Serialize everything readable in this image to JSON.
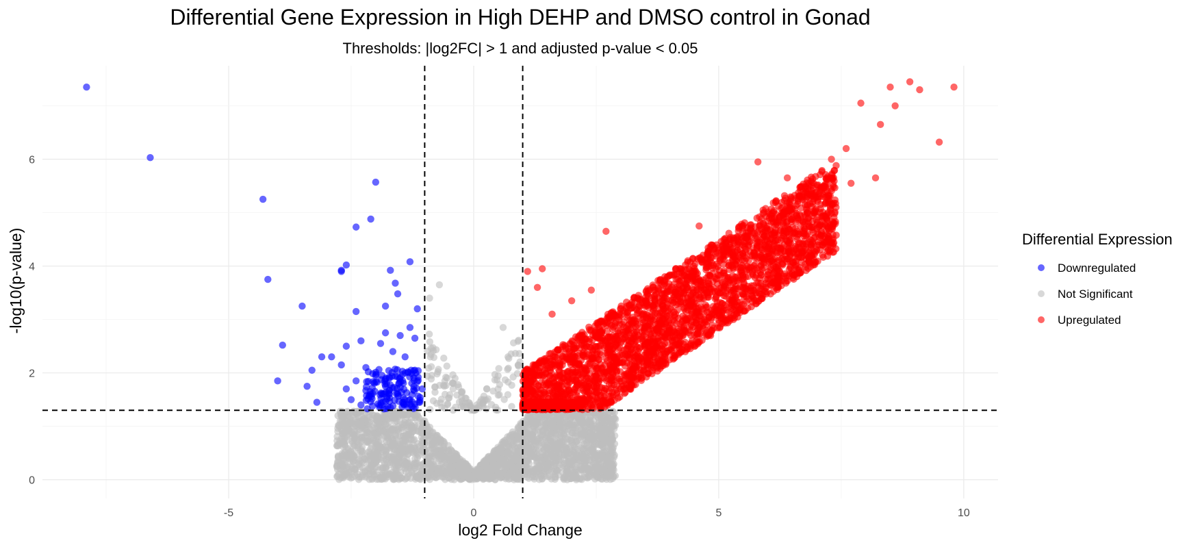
{
  "chart_data": {
    "type": "scatter",
    "title": "Differential Gene Expression in High DEHP and DMSO control in Gonad",
    "subtitle": "Thresholds: |log2FC| > 1 and adjusted p-value < 0.05",
    "xlabel": "log2 Fold Change",
    "ylabel": "-log10(p-value)",
    "xlim": [
      -8.8,
      10.7
    ],
    "ylim": [
      -0.35,
      7.75
    ],
    "x_ticks": [
      -5,
      0,
      5,
      10
    ],
    "x_tick_labels": [
      "-5",
      "0",
      "5",
      "10"
    ],
    "y_ticks": [
      0,
      2,
      4,
      6
    ],
    "y_tick_labels": [
      "0",
      "2",
      "4",
      "6"
    ],
    "grid": true,
    "thresholds": {
      "log2fc": [
        -1,
        1
      ],
      "neg_log10_p": 1.3
    },
    "legend": {
      "title": "Differential Expression",
      "position": "right",
      "entries": [
        {
          "label": "Downregulated",
          "color": "#0000ff"
        },
        {
          "label": "Not Significant",
          "color": "#bebebe"
        },
        {
          "label": "Upregulated",
          "color": "#ff0000"
        }
      ]
    },
    "series": [
      {
        "name": "Downregulated",
        "color": "#0000ff",
        "points": [
          [
            -7.9,
            7.35
          ],
          [
            -6.6,
            6.03
          ],
          [
            -4.3,
            5.25
          ],
          [
            -4.2,
            3.75
          ],
          [
            -3.5,
            3.25
          ],
          [
            -3.9,
            2.52
          ],
          [
            -4.0,
            1.85
          ],
          [
            -3.3,
            2.05
          ],
          [
            -3.2,
            1.45
          ],
          [
            -3.1,
            2.3
          ],
          [
            -3.4,
            1.75
          ],
          [
            -2.7,
            3.92
          ],
          [
            -2.7,
            3.9
          ],
          [
            -2.6,
            4.02
          ],
          [
            -2.4,
            4.73
          ],
          [
            -2.0,
            5.57
          ],
          [
            -2.1,
            4.88
          ],
          [
            -2.4,
            3.15
          ],
          [
            -1.7,
            3.92
          ],
          [
            -1.6,
            3.68
          ],
          [
            -1.55,
            3.48
          ],
          [
            -1.3,
            4.08
          ],
          [
            -1.15,
            3.2
          ],
          [
            -1.8,
            3.25
          ],
          [
            -2.6,
            2.5
          ],
          [
            -2.3,
            2.6
          ],
          [
            -2.9,
            2.3
          ],
          [
            -2.7,
            2.15
          ],
          [
            -2.2,
            2.1
          ],
          [
            -2.4,
            1.85
          ],
          [
            -2.6,
            1.7
          ],
          [
            -2.5,
            1.5
          ],
          [
            -2.3,
            1.4
          ],
          [
            -1.9,
            2.55
          ],
          [
            -1.8,
            2.75
          ],
          [
            -1.5,
            2.7
          ],
          [
            -1.3,
            2.85
          ],
          [
            -1.2,
            2.65
          ],
          [
            -1.65,
            2.4
          ],
          [
            -1.4,
            2.3
          ],
          [
            -2.0,
            1.95
          ],
          [
            -1.8,
            1.75
          ],
          [
            -1.55,
            1.6
          ],
          [
            -1.3,
            1.5
          ],
          [
            -1.1,
            1.45
          ],
          [
            -2.1,
            1.6
          ],
          [
            -1.7,
            1.35
          ],
          [
            -1.45,
            1.85
          ],
          [
            -1.2,
            2.05
          ],
          [
            -1.05,
            1.7
          ]
        ]
      },
      {
        "name": "Upregulated",
        "color": "#ff0000",
        "points": [
          [
            9.8,
            7.35
          ],
          [
            8.9,
            7.45
          ],
          [
            9.1,
            7.3
          ],
          [
            8.5,
            7.35
          ],
          [
            8.6,
            7.0
          ],
          [
            7.9,
            7.05
          ],
          [
            8.3,
            6.65
          ],
          [
            9.5,
            6.32
          ],
          [
            7.6,
            6.2
          ],
          [
            7.3,
            6.0
          ],
          [
            8.2,
            5.65
          ],
          [
            7.7,
            5.55
          ],
          [
            7.2,
            5.3
          ],
          [
            7.0,
            4.7
          ],
          [
            6.7,
            4.25
          ],
          [
            5.8,
            5.95
          ],
          [
            6.4,
            5.65
          ],
          [
            4.6,
            4.75
          ],
          [
            2.7,
            4.65
          ],
          [
            1.1,
            3.9
          ],
          [
            1.4,
            3.95
          ],
          [
            2.0,
            3.35
          ],
          [
            2.4,
            3.55
          ],
          [
            1.3,
            3.6
          ],
          [
            1.6,
            3.1
          ]
        ]
      }
    ]
  }
}
